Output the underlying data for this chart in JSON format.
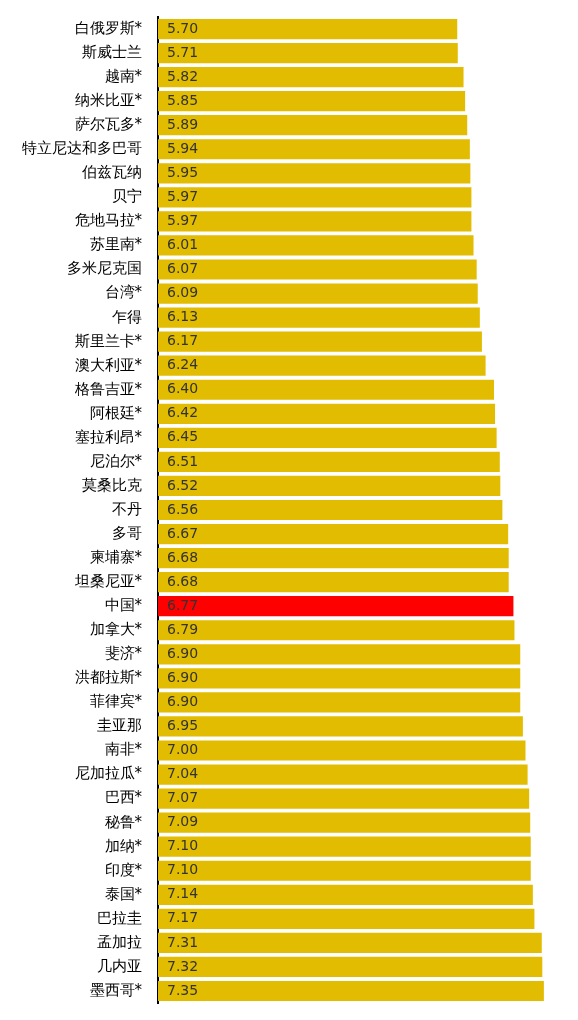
{
  "chart_data": {
    "type": "bar",
    "orientation": "horizontal",
    "categories": [
      "白俄罗斯*",
      "斯威士兰",
      "越南*",
      "纳米比亚*",
      "萨尔瓦多*",
      "特立尼达和多巴哥",
      "伯兹瓦纳",
      "贝宁",
      "危地马拉*",
      "苏里南*",
      "多米尼克国",
      "台湾*",
      "乍得",
      "斯里兰卡*",
      "澳大利亚*",
      "格鲁吉亚*",
      "阿根廷*",
      "塞拉利昂*",
      "尼泊尔*",
      "莫桑比克",
      "不丹",
      "多哥",
      "柬埔寨*",
      "坦桑尼亚*",
      "中国*",
      "加拿大*",
      "斐济*",
      "洪都拉斯*",
      "菲律宾*",
      "圭亚那",
      "南非*",
      "尼加拉瓜*",
      "巴西*",
      "秘鲁*",
      "加纳*",
      "印度*",
      "泰国*",
      "巴拉圭",
      "孟加拉",
      "几内亚",
      "墨西哥*"
    ],
    "values": [
      5.7,
      5.71,
      5.82,
      5.85,
      5.89,
      5.94,
      5.95,
      5.97,
      5.97,
      6.01,
      6.07,
      6.09,
      6.13,
      6.17,
      6.24,
      6.4,
      6.42,
      6.45,
      6.51,
      6.52,
      6.56,
      6.67,
      6.68,
      6.68,
      6.77,
      6.79,
      6.9,
      6.9,
      6.9,
      6.95,
      7.0,
      7.04,
      7.07,
      7.09,
      7.1,
      7.1,
      7.14,
      7.17,
      7.31,
      7.32,
      7.35
    ],
    "value_labels": [
      "5.70",
      "5.71",
      "5.82",
      "5.85",
      "5.89",
      "5.94",
      "5.95",
      "5.97",
      "5.97",
      "6.01",
      "6.07",
      "6.09",
      "6.13",
      "6.17",
      "6.24",
      "6.40",
      "6.42",
      "6.45",
      "6.51",
      "6.52",
      "6.56",
      "6.67",
      "6.68",
      "6.68",
      "6.77",
      "6.79",
      "6.90",
      "6.90",
      "6.90",
      "6.95",
      "7.00",
      "7.04",
      "7.07",
      "7.09",
      "7.10",
      "7.10",
      "7.14",
      "7.17",
      "7.31",
      "7.32",
      "7.35"
    ],
    "colors": [
      "#e2bc00",
      "#e2bc00",
      "#e2bc00",
      "#e2bc00",
      "#e2bc00",
      "#e2bc00",
      "#e2bc00",
      "#e2bc00",
      "#e2bc00",
      "#e2bc00",
      "#e2bc00",
      "#e2bc00",
      "#e2bc00",
      "#e2bc00",
      "#e2bc00",
      "#e2bc00",
      "#e2bc00",
      "#e2bc00",
      "#e2bc00",
      "#e2bc00",
      "#e2bc00",
      "#e2bc00",
      "#e2bc00",
      "#e2bc00",
      "#ff0000",
      "#e2bc00",
      "#e2bc00",
      "#e2bc00",
      "#e2bc00",
      "#e2bc00",
      "#e2bc00",
      "#e2bc00",
      "#e2bc00",
      "#e2bc00",
      "#e2bc00",
      "#e2bc00",
      "#e2bc00",
      "#e2bc00",
      "#e2bc00",
      "#e2bc00",
      "#e2bc00"
    ]
  }
}
